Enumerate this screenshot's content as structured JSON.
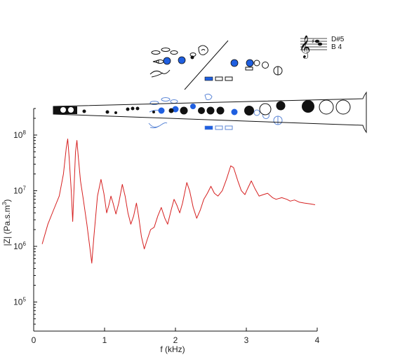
{
  "chart_data": {
    "type": "line",
    "xlabel": "f (kHz)",
    "ylabel": "|Z| (Pa.s.m-3)",
    "ylabel_parts": [
      "|Z| (Pa.s.m",
      "3",
      ")"
    ],
    "x_range": [
      0,
      4
    ],
    "y_range": [
      30000,
      300000000
    ],
    "y_scale": "log",
    "x_ticks": [
      0,
      1,
      2,
      3,
      4
    ],
    "x_tick_labels": [
      "0",
      "1",
      "2",
      "3",
      "4"
    ],
    "y_ticks": [
      {
        "value": 100000,
        "base": "10",
        "exp": "5"
      },
      {
        "value": 1000000,
        "base": "10",
        "exp": "6"
      },
      {
        "value": 10000000,
        "base": "10",
        "exp": "7"
      },
      {
        "value": 100000000,
        "base": "10",
        "exp": "8"
      }
    ],
    "series": [
      {
        "color": "#d62020",
        "points": [
          [
            0.12,
            1100000.0
          ],
          [
            0.2,
            2500000.0
          ],
          [
            0.28,
            4500000.0
          ],
          [
            0.36,
            8000000.0
          ],
          [
            0.42,
            20000000.0
          ],
          [
            0.46,
            60000000.0
          ],
          [
            0.48,
            85000000.0
          ],
          [
            0.5,
            40000000.0
          ],
          [
            0.53,
            10000000.0
          ],
          [
            0.55,
            2800000.0
          ],
          [
            0.57,
            12000000.0
          ],
          [
            0.59,
            50000000.0
          ],
          [
            0.61,
            80000000.0
          ],
          [
            0.63,
            40000000.0
          ],
          [
            0.66,
            15000000.0
          ],
          [
            0.7,
            7000000.0
          ],
          [
            0.75,
            2500000.0
          ],
          [
            0.79,
            1000000.0
          ],
          [
            0.82,
            500000.0
          ],
          [
            0.85,
            1500000.0
          ],
          [
            0.9,
            8000000.0
          ],
          [
            0.95,
            16000000.0
          ],
          [
            0.99,
            9000000.0
          ],
          [
            1.03,
            4000000.0
          ],
          [
            1.06,
            5500000.0
          ],
          [
            1.09,
            8000000.0
          ],
          [
            1.12,
            6000000.0
          ],
          [
            1.16,
            3800000.0
          ],
          [
            1.2,
            6000000.0
          ],
          [
            1.25,
            13000000.0
          ],
          [
            1.29,
            8000000.0
          ],
          [
            1.33,
            4000000.0
          ],
          [
            1.37,
            2500000.0
          ],
          [
            1.41,
            3500000.0
          ],
          [
            1.45,
            6000000.0
          ],
          [
            1.48,
            3500000.0
          ],
          [
            1.52,
            1500000.0
          ],
          [
            1.56,
            900000.0
          ],
          [
            1.6,
            1300000.0
          ],
          [
            1.65,
            2000000.0
          ],
          [
            1.7,
            2200000.0
          ],
          [
            1.75,
            3500000.0
          ],
          [
            1.8,
            5000000.0
          ],
          [
            1.85,
            3200000.0
          ],
          [
            1.89,
            2500000.0
          ],
          [
            1.94,
            4500000.0
          ],
          [
            1.98,
            7000000.0
          ],
          [
            2.02,
            5500000.0
          ],
          [
            2.06,
            4000000.0
          ],
          [
            2.1,
            6000000.0
          ],
          [
            2.16,
            14000000.0
          ],
          [
            2.2,
            10000000.0
          ],
          [
            2.25,
            5000000.0
          ],
          [
            2.3,
            3200000.0
          ],
          [
            2.35,
            4500000.0
          ],
          [
            2.4,
            7000000.0
          ],
          [
            2.45,
            9000000.0
          ],
          [
            2.5,
            12000000.0
          ],
          [
            2.55,
            9000000.0
          ],
          [
            2.6,
            8000000.0
          ],
          [
            2.66,
            10000000.0
          ],
          [
            2.72,
            16000000.0
          ],
          [
            2.78,
            28000000.0
          ],
          [
            2.82,
            26000000.0
          ],
          [
            2.88,
            15000000.0
          ],
          [
            2.93,
            10000000.0
          ],
          [
            2.98,
            8500000.0
          ],
          [
            3.02,
            11000000.0
          ],
          [
            3.07,
            15000000.0
          ],
          [
            3.12,
            11000000.0
          ],
          [
            3.18,
            8000000.0
          ],
          [
            3.24,
            8500000.0
          ],
          [
            3.3,
            9000000.0
          ],
          [
            3.37,
            7500000.0
          ],
          [
            3.42,
            7000000.0
          ],
          [
            3.5,
            7500000.0
          ],
          [
            3.57,
            7000000.0
          ],
          [
            3.62,
            6500000.0
          ],
          [
            3.68,
            6800000.0
          ],
          [
            3.75,
            6200000.0
          ],
          [
            3.82,
            6000000.0
          ],
          [
            3.9,
            5800000.0
          ],
          [
            3.97,
            5600000.0
          ]
        ]
      }
    ]
  },
  "illustration": {
    "staff_notes": [
      "D#5",
      "B 4"
    ]
  }
}
